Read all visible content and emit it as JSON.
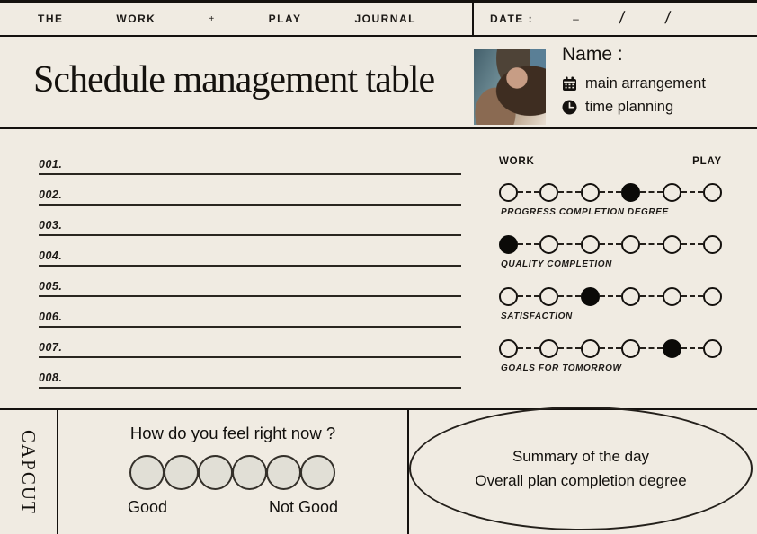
{
  "colors": {
    "background": "#f0ebe2",
    "ink": "#14110e",
    "mood_circle_fill": "#e1dfd6"
  },
  "top_bar": {
    "items": [
      "THE",
      "WORK",
      "+",
      "PLAY",
      "JOURNAL"
    ],
    "date_label": "DATE :",
    "date_dash": "–",
    "date_slash_1": "/",
    "date_slash_2": "/"
  },
  "header": {
    "title": "Schedule management table",
    "photo": "portrait-of-woman-with-curly-hair",
    "name_label": "Name :",
    "bullets": [
      {
        "icon": "calendar-icon",
        "label": "main arrangement"
      },
      {
        "icon": "clock-icon",
        "label": "time planning"
      }
    ]
  },
  "schedule_list": {
    "rows": [
      "001.",
      "002.",
      "003.",
      "004.",
      "005.",
      "006.",
      "007.",
      "008."
    ]
  },
  "trackers": {
    "left_header": "WORK",
    "right_header": "PLAY",
    "rows": [
      {
        "label": "PROGRESS COMPLETION DEGREE",
        "dots": 6,
        "filled_index": 3
      },
      {
        "label": "QUALITY COMPLETION",
        "dots": 6,
        "filled_index": 0
      },
      {
        "label": "SATISFACTION",
        "dots": 6,
        "filled_index": 2
      },
      {
        "label": "GOALS FOR TOMORROW",
        "dots": 6,
        "filled_index": 4
      }
    ]
  },
  "footer": {
    "brand": "CAPCUT",
    "mood_question": "How do you feel right now ?",
    "mood_circle_count": 6,
    "good_label": "Good",
    "not_good_label": "Not Good",
    "summary_line_1": "Summary of the day",
    "summary_line_2": "Overall plan completion degree"
  }
}
